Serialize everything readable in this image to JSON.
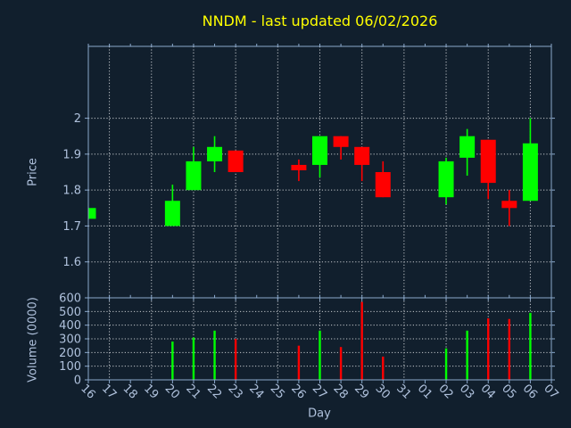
{
  "title": "NNDM - last updated 06/02/2026",
  "colors": {
    "background": "#111F2D",
    "axis": "#8BA9CC",
    "tick_label": "#AFC1DC",
    "grid": "#C3C7CC",
    "title": "#FFFF00",
    "up": "#00FF00",
    "down": "#FF0000"
  },
  "chart_data": [
    {
      "type": "candlestick",
      "title": "NNDM - last updated 06/02/2026",
      "xlabel": "Day",
      "ylabel": "Price",
      "x_labels": [
        "16",
        "17",
        "18",
        "19",
        "20",
        "21",
        "22",
        "23",
        "24",
        "25",
        "26",
        "27",
        "28",
        "29",
        "30",
        "31",
        "01",
        "02",
        "03",
        "04",
        "05",
        "06",
        "07"
      ],
      "ylim": [
        1.5,
        2.2
      ],
      "yticks": [
        {
          "value": 1.6,
          "label": "1.6"
        },
        {
          "value": 1.7,
          "label": "1.7"
        },
        {
          "value": 1.8,
          "label": "1.8"
        },
        {
          "value": 1.9,
          "label": "1.9"
        },
        {
          "value": 2.0,
          "label": "2"
        }
      ],
      "grid": true,
      "grid_x_indices": [
        1,
        3,
        5,
        7,
        9,
        11,
        13,
        15,
        17,
        19,
        21
      ],
      "ohlc": [
        {
          "day": "16",
          "x_index": 0,
          "open": 1.72,
          "high": 1.75,
          "low": 1.72,
          "close": 1.75,
          "direction": "up"
        },
        {
          "day": "20",
          "x_index": 4,
          "open": 1.7,
          "high": 1.815,
          "low": 1.7,
          "close": 1.77,
          "direction": "up"
        },
        {
          "day": "21",
          "x_index": 5,
          "open": 1.8,
          "high": 1.92,
          "low": 1.8,
          "close": 1.88,
          "direction": "up"
        },
        {
          "day": "22",
          "x_index": 6,
          "open": 1.88,
          "high": 1.95,
          "low": 1.85,
          "close": 1.92,
          "direction": "up"
        },
        {
          "day": "23",
          "x_index": 7,
          "open": 1.91,
          "high": 1.91,
          "low": 1.85,
          "close": 1.85,
          "direction": "down"
        },
        {
          "day": "26",
          "x_index": 10,
          "open": 1.87,
          "high": 1.885,
          "low": 1.825,
          "close": 1.855,
          "direction": "down"
        },
        {
          "day": "27",
          "x_index": 11,
          "open": 1.87,
          "high": 1.95,
          "low": 1.835,
          "close": 1.95,
          "direction": "up"
        },
        {
          "day": "28",
          "x_index": 12,
          "open": 1.95,
          "high": 1.95,
          "low": 1.885,
          "close": 1.92,
          "direction": "down"
        },
        {
          "day": "29",
          "x_index": 13,
          "open": 1.92,
          "high": 1.92,
          "low": 1.825,
          "close": 1.87,
          "direction": "down"
        },
        {
          "day": "30",
          "x_index": 14,
          "open": 1.85,
          "high": 1.88,
          "low": 1.78,
          "close": 1.78,
          "direction": "down"
        },
        {
          "day": "02",
          "x_index": 17,
          "open": 1.78,
          "high": 1.89,
          "low": 1.76,
          "close": 1.88,
          "direction": "up"
        },
        {
          "day": "03",
          "x_index": 18,
          "open": 1.89,
          "high": 1.97,
          "low": 1.84,
          "close": 1.95,
          "direction": "up"
        },
        {
          "day": "04",
          "x_index": 19,
          "open": 1.94,
          "high": 1.94,
          "low": 1.775,
          "close": 1.82,
          "direction": "down"
        },
        {
          "day": "05",
          "x_index": 20,
          "open": 1.77,
          "high": 1.8,
          "low": 1.7,
          "close": 1.75,
          "direction": "down"
        },
        {
          "day": "06",
          "x_index": 21,
          "open": 1.77,
          "high": 2.0,
          "low": 1.77,
          "close": 1.93,
          "direction": "up"
        }
      ]
    },
    {
      "type": "bar",
      "ylabel": "Volume (0000)",
      "ylim": [
        0,
        600
      ],
      "yticks": [
        {
          "value": 0,
          "label": "0"
        },
        {
          "value": 100,
          "label": "100"
        },
        {
          "value": 200,
          "label": "200"
        },
        {
          "value": 300,
          "label": "300"
        },
        {
          "value": 400,
          "label": "400"
        },
        {
          "value": 500,
          "label": "500"
        },
        {
          "value": 600,
          "label": "600"
        }
      ],
      "grid": true,
      "bars": [
        {
          "day": "20",
          "x_index": 4,
          "value": 280,
          "direction": "up"
        },
        {
          "day": "21",
          "x_index": 5,
          "value": 310,
          "direction": "up"
        },
        {
          "day": "22",
          "x_index": 6,
          "value": 360,
          "direction": "up"
        },
        {
          "day": "23",
          "x_index": 7,
          "value": 300,
          "direction": "down"
        },
        {
          "day": "26",
          "x_index": 10,
          "value": 250,
          "direction": "down"
        },
        {
          "day": "27",
          "x_index": 11,
          "value": 360,
          "direction": "up"
        },
        {
          "day": "28",
          "x_index": 12,
          "value": 240,
          "direction": "down"
        },
        {
          "day": "29",
          "x_index": 13,
          "value": 570,
          "direction": "down"
        },
        {
          "day": "30",
          "x_index": 14,
          "value": 170,
          "direction": "down"
        },
        {
          "day": "02",
          "x_index": 17,
          "value": 230,
          "direction": "up"
        },
        {
          "day": "03",
          "x_index": 18,
          "value": 360,
          "direction": "up"
        },
        {
          "day": "04",
          "x_index": 19,
          "value": 450,
          "direction": "down"
        },
        {
          "day": "05",
          "x_index": 20,
          "value": 445,
          "direction": "down"
        },
        {
          "day": "06",
          "x_index": 21,
          "value": 490,
          "direction": "up"
        }
      ]
    }
  ]
}
